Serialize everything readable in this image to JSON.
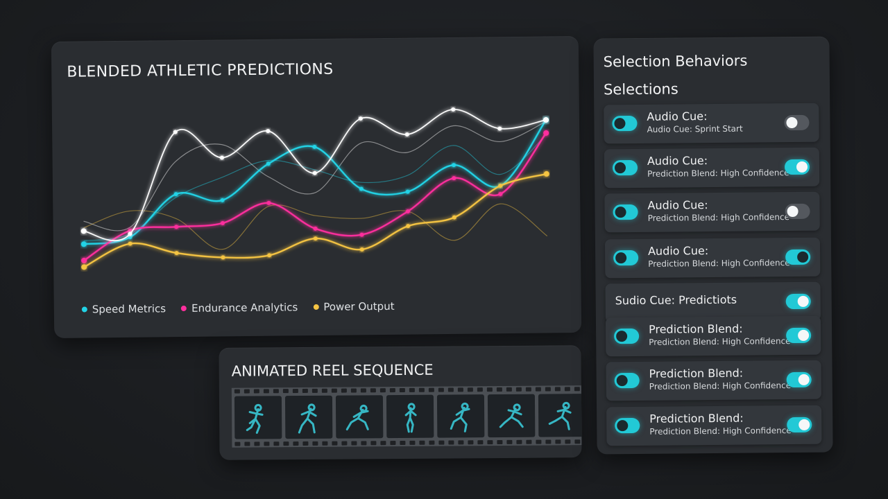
{
  "chart_panel": {
    "title": "BLENDED ATHLETIC PREDICTIONS"
  },
  "chart_data": {
    "type": "line",
    "title": "BLENDED ATHLETIC PREDICTIONS",
    "xlabel": "",
    "ylabel": "",
    "grid": false,
    "legend_position": "bottom-left",
    "x": [
      0,
      1,
      2,
      3,
      4,
      5,
      6,
      7,
      8,
      9,
      10
    ],
    "ylim": [
      0,
      100
    ],
    "series": [
      {
        "name": "Speed Metrics",
        "color": "#22d3e6",
        "values": [
          20,
          24,
          50,
          46,
          68,
          78,
          52,
          50,
          66,
          53,
          93
        ]
      },
      {
        "name": "Endurance Analytics",
        "color": "#ff2f9e",
        "values": [
          10,
          28,
          30,
          32,
          44,
          28,
          24,
          38,
          58,
          48,
          85
        ]
      },
      {
        "name": "Power Output",
        "color": "#f5c443",
        "values": [
          6,
          20,
          14,
          11,
          12,
          22,
          15,
          29,
          34,
          53,
          60
        ]
      },
      {
        "name": "",
        "color": "#ffffff",
        "values": [
          28,
          26,
          88,
          72,
          88,
          62,
          95,
          85,
          100,
          88,
          93
        ]
      }
    ]
  },
  "reel_panel": {
    "title": "ANIMATED REEL SEQUENCE",
    "frame_count": 7
  },
  "selections_panel": {
    "behaviors_title": "Selection Behaviors",
    "heading": "Selections",
    "rows": [
      {
        "t1": "Audio Cue:",
        "t2": "Audio Cue: Sprint Start",
        "left_on": true,
        "right_on": false
      },
      {
        "t1": "Audio Cue:",
        "t2": "Prediction Blend: High Confidence",
        "left_on": true,
        "right_on": true
      },
      {
        "t1": "Audio Cue:",
        "t2": "Prediction Blend: High Confidence",
        "left_on": true,
        "right_on": false
      },
      {
        "t1": "Audio Cue:",
        "t2": "Prediction Blend: High Confidence",
        "left_on": true,
        "right_on": true
      },
      {
        "t1": "Sudio Cue: Predictiots",
        "right_on": true
      },
      {
        "t1": "Prediction Blend:",
        "t2": "Prediction Blend: High Confidence",
        "left_on": true,
        "right_on": true
      },
      {
        "t1": "Prediction Blend:",
        "t2": "Prediction Blend: High Confidence",
        "left_on": true,
        "right_on": true
      },
      {
        "t1": "Prediction Blend:",
        "t2": "Prediction Blend: High Confidence",
        "left_on": true,
        "right_on": true
      }
    ]
  }
}
